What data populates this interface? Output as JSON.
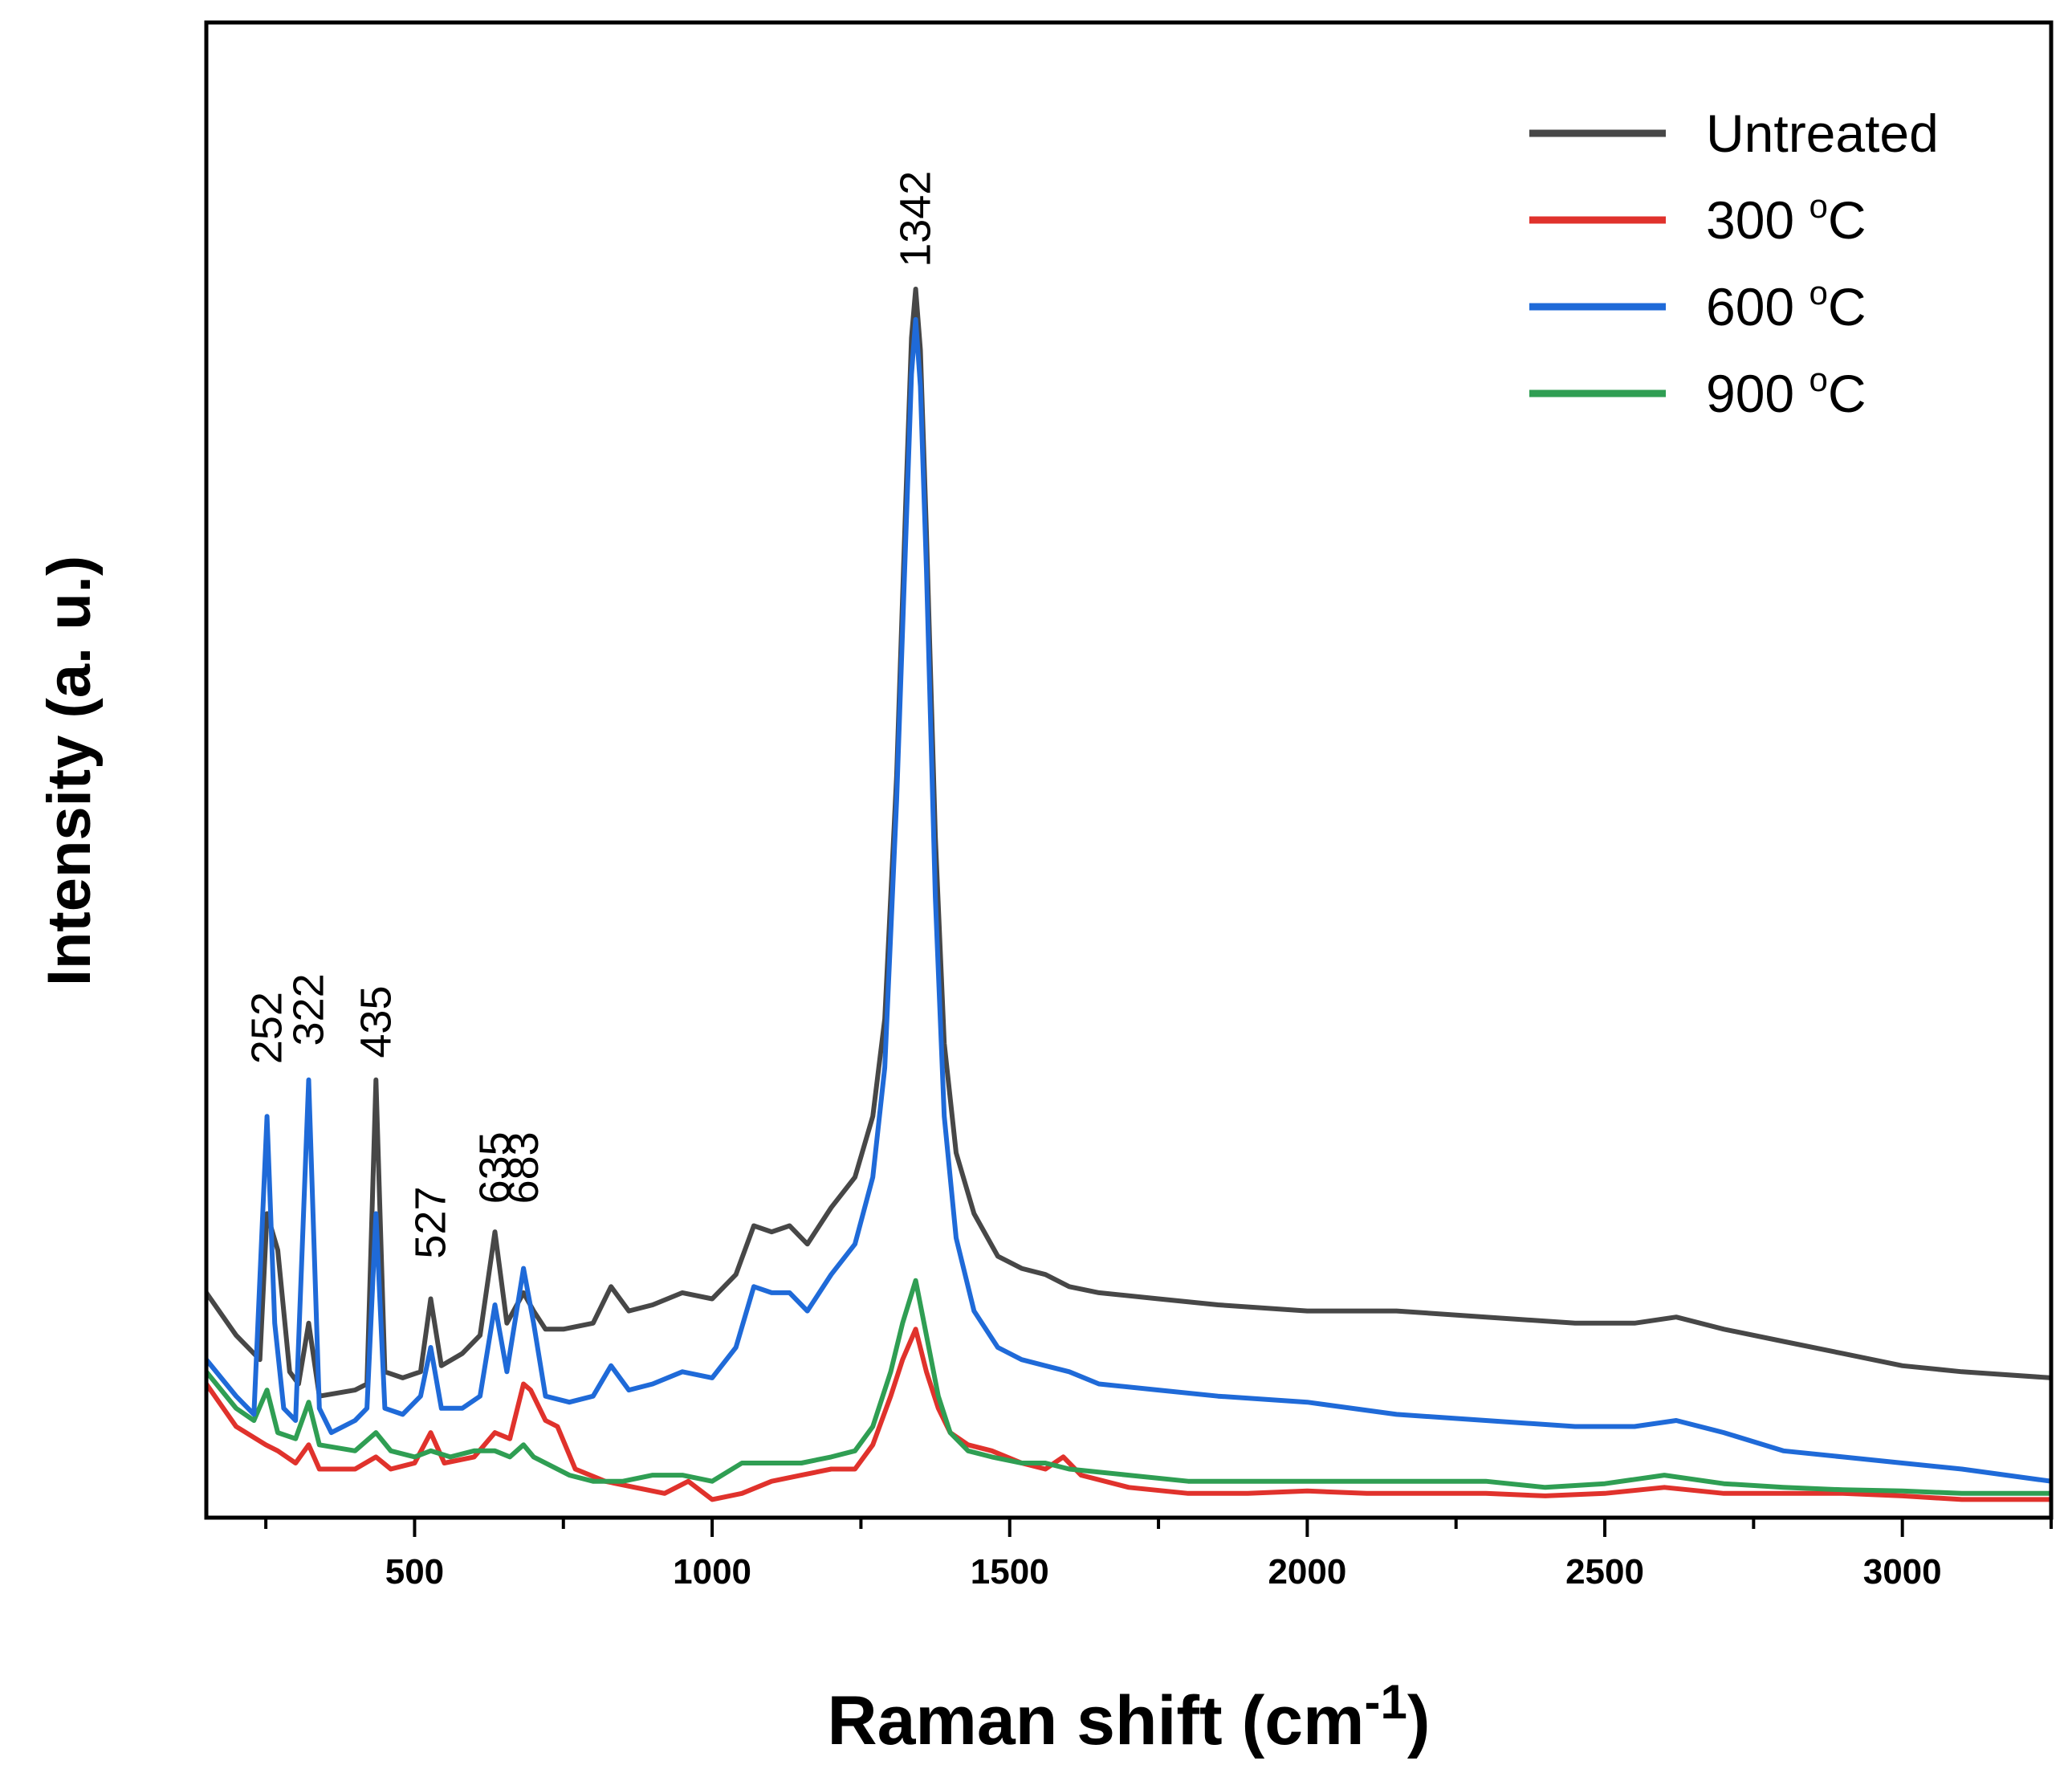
{
  "chart_data": {
    "type": "line",
    "title": "",
    "xlabel": "Raman shift (cm",
    "xlabel_superscript": "-1",
    "xlabel_close": ")",
    "ylabel": "Intensity (a. u.)",
    "xlim": [
      150,
      3250
    ],
    "ylim": [
      0,
      1.0
    ],
    "xticks": [
      500,
      1000,
      1500,
      2000,
      2500,
      3000
    ],
    "xtick_labels": [
      "500",
      "1000",
      "1500",
      "2000",
      "2500",
      "3000"
    ],
    "legend_position": "top-right",
    "peak_annotations": [
      {
        "label": "252",
        "x": 252,
        "y": 0.355
      },
      {
        "label": "322",
        "x": 322,
        "y": 0.37
      },
      {
        "label": "435",
        "x": 435,
        "y": 0.36
      },
      {
        "label": "527",
        "x": 527,
        "y": 0.195
      },
      {
        "label": "635",
        "x": 635,
        "y": 0.24
      },
      {
        "label": "683",
        "x": 683,
        "y": 0.24
      },
      {
        "label": "1342",
        "x": 1342,
        "y": 1.01
      }
    ],
    "series": [
      {
        "name": "Untreated",
        "color": "#474747",
        "points": [
          [
            150,
            0.175
          ],
          [
            200,
            0.14
          ],
          [
            240,
            0.12
          ],
          [
            252,
            0.24
          ],
          [
            270,
            0.21
          ],
          [
            290,
            0.11
          ],
          [
            305,
            0.1
          ],
          [
            322,
            0.15
          ],
          [
            340,
            0.09
          ],
          [
            400,
            0.095
          ],
          [
            420,
            0.1
          ],
          [
            435,
            0.35
          ],
          [
            450,
            0.11
          ],
          [
            480,
            0.105
          ],
          [
            510,
            0.11
          ],
          [
            527,
            0.17
          ],
          [
            545,
            0.115
          ],
          [
            580,
            0.125
          ],
          [
            610,
            0.14
          ],
          [
            635,
            0.225
          ],
          [
            655,
            0.15
          ],
          [
            683,
            0.175
          ],
          [
            700,
            0.16
          ],
          [
            720,
            0.145
          ],
          [
            750,
            0.145
          ],
          [
            800,
            0.15
          ],
          [
            830,
            0.18
          ],
          [
            860,
            0.16
          ],
          [
            900,
            0.165
          ],
          [
            950,
            0.175
          ],
          [
            1000,
            0.17
          ],
          [
            1040,
            0.19
          ],
          [
            1070,
            0.23
          ],
          [
            1100,
            0.225
          ],
          [
            1130,
            0.23
          ],
          [
            1160,
            0.215
          ],
          [
            1200,
            0.245
          ],
          [
            1240,
            0.27
          ],
          [
            1270,
            0.32
          ],
          [
            1290,
            0.4
          ],
          [
            1310,
            0.6
          ],
          [
            1325,
            0.82
          ],
          [
            1335,
            0.96
          ],
          [
            1342,
            1.0
          ],
          [
            1350,
            0.95
          ],
          [
            1360,
            0.8
          ],
          [
            1375,
            0.55
          ],
          [
            1390,
            0.38
          ],
          [
            1410,
            0.29
          ],
          [
            1440,
            0.24
          ],
          [
            1480,
            0.205
          ],
          [
            1520,
            0.195
          ],
          [
            1560,
            0.19
          ],
          [
            1600,
            0.18
          ],
          [
            1650,
            0.175
          ],
          [
            1750,
            0.17
          ],
          [
            1850,
            0.165
          ],
          [
            2000,
            0.16
          ],
          [
            2150,
            0.16
          ],
          [
            2300,
            0.155
          ],
          [
            2450,
            0.15
          ],
          [
            2550,
            0.15
          ],
          [
            2620,
            0.155
          ],
          [
            2700,
            0.145
          ],
          [
            2800,
            0.135
          ],
          [
            2900,
            0.125
          ],
          [
            3000,
            0.115
          ],
          [
            3100,
            0.11
          ],
          [
            3250,
            0.105
          ]
        ]
      },
      {
        "name": "300 °C",
        "color": "#e0322c",
        "points": [
          [
            150,
            0.1
          ],
          [
            200,
            0.065
          ],
          [
            250,
            0.05
          ],
          [
            270,
            0.045
          ],
          [
            300,
            0.035
          ],
          [
            322,
            0.05
          ],
          [
            340,
            0.03
          ],
          [
            400,
            0.03
          ],
          [
            435,
            0.04
          ],
          [
            460,
            0.03
          ],
          [
            500,
            0.035
          ],
          [
            527,
            0.06
          ],
          [
            550,
            0.035
          ],
          [
            600,
            0.04
          ],
          [
            635,
            0.06
          ],
          [
            660,
            0.055
          ],
          [
            683,
            0.1
          ],
          [
            695,
            0.095
          ],
          [
            720,
            0.07
          ],
          [
            740,
            0.065
          ],
          [
            770,
            0.03
          ],
          [
            820,
            0.02
          ],
          [
            870,
            0.015
          ],
          [
            920,
            0.01
          ],
          [
            960,
            0.02
          ],
          [
            1000,
            0.005
          ],
          [
            1050,
            0.01
          ],
          [
            1100,
            0.02
          ],
          [
            1150,
            0.025
          ],
          [
            1200,
            0.03
          ],
          [
            1240,
            0.03
          ],
          [
            1270,
            0.05
          ],
          [
            1300,
            0.09
          ],
          [
            1320,
            0.12
          ],
          [
            1342,
            0.145
          ],
          [
            1360,
            0.11
          ],
          [
            1380,
            0.08
          ],
          [
            1400,
            0.06
          ],
          [
            1430,
            0.05
          ],
          [
            1470,
            0.045
          ],
          [
            1520,
            0.035
          ],
          [
            1560,
            0.03
          ],
          [
            1590,
            0.04
          ],
          [
            1620,
            0.025
          ],
          [
            1700,
            0.015
          ],
          [
            1800,
            0.01
          ],
          [
            1900,
            0.01
          ],
          [
            2000,
            0.012
          ],
          [
            2100,
            0.01
          ],
          [
            2200,
            0.01
          ],
          [
            2300,
            0.01
          ],
          [
            2400,
            0.008
          ],
          [
            2500,
            0.01
          ],
          [
            2600,
            0.015
          ],
          [
            2700,
            0.01
          ],
          [
            2800,
            0.01
          ],
          [
            2900,
            0.01
          ],
          [
            3000,
            0.008
          ],
          [
            3100,
            0.005
          ],
          [
            3250,
            0.005
          ]
        ]
      },
      {
        "name": "600 °C",
        "color": "#1f6ad8",
        "points": [
          [
            150,
            0.12
          ],
          [
            200,
            0.09
          ],
          [
            230,
            0.075
          ],
          [
            252,
            0.32
          ],
          [
            265,
            0.15
          ],
          [
            280,
            0.08
          ],
          [
            300,
            0.07
          ],
          [
            322,
            0.35
          ],
          [
            340,
            0.08
          ],
          [
            360,
            0.06
          ],
          [
            400,
            0.07
          ],
          [
            420,
            0.08
          ],
          [
            435,
            0.24
          ],
          [
            450,
            0.08
          ],
          [
            480,
            0.075
          ],
          [
            510,
            0.09
          ],
          [
            527,
            0.13
          ],
          [
            545,
            0.08
          ],
          [
            580,
            0.08
          ],
          [
            610,
            0.09
          ],
          [
            635,
            0.165
          ],
          [
            655,
            0.11
          ],
          [
            683,
            0.195
          ],
          [
            700,
            0.15
          ],
          [
            720,
            0.09
          ],
          [
            760,
            0.085
          ],
          [
            800,
            0.09
          ],
          [
            830,
            0.115
          ],
          [
            860,
            0.095
          ],
          [
            900,
            0.1
          ],
          [
            950,
            0.11
          ],
          [
            1000,
            0.105
          ],
          [
            1040,
            0.13
          ],
          [
            1070,
            0.18
          ],
          [
            1100,
            0.175
          ],
          [
            1130,
            0.175
          ],
          [
            1160,
            0.16
          ],
          [
            1200,
            0.19
          ],
          [
            1240,
            0.215
          ],
          [
            1270,
            0.27
          ],
          [
            1290,
            0.36
          ],
          [
            1310,
            0.58
          ],
          [
            1325,
            0.79
          ],
          [
            1335,
            0.93
          ],
          [
            1342,
            0.975
          ],
          [
            1350,
            0.92
          ],
          [
            1360,
            0.77
          ],
          [
            1375,
            0.5
          ],
          [
            1390,
            0.32
          ],
          [
            1410,
            0.22
          ],
          [
            1440,
            0.16
          ],
          [
            1480,
            0.13
          ],
          [
            1520,
            0.12
          ],
          [
            1560,
            0.115
          ],
          [
            1600,
            0.11
          ],
          [
            1650,
            0.1
          ],
          [
            1750,
            0.095
          ],
          [
            1850,
            0.09
          ],
          [
            2000,
            0.085
          ],
          [
            2150,
            0.075
          ],
          [
            2300,
            0.07
          ],
          [
            2450,
            0.065
          ],
          [
            2550,
            0.065
          ],
          [
            2620,
            0.07
          ],
          [
            2700,
            0.06
          ],
          [
            2800,
            0.045
          ],
          [
            2900,
            0.04
          ],
          [
            3000,
            0.035
          ],
          [
            3100,
            0.03
          ],
          [
            3250,
            0.02
          ]
        ]
      },
      {
        "name": "900 °C",
        "color": "#2f9e53",
        "points": [
          [
            150,
            0.11
          ],
          [
            200,
            0.08
          ],
          [
            230,
            0.07
          ],
          [
            252,
            0.095
          ],
          [
            270,
            0.06
          ],
          [
            300,
            0.055
          ],
          [
            322,
            0.085
          ],
          [
            340,
            0.05
          ],
          [
            400,
            0.045
          ],
          [
            435,
            0.06
          ],
          [
            460,
            0.045
          ],
          [
            500,
            0.04
          ],
          [
            527,
            0.045
          ],
          [
            560,
            0.04
          ],
          [
            600,
            0.045
          ],
          [
            635,
            0.045
          ],
          [
            660,
            0.04
          ],
          [
            683,
            0.05
          ],
          [
            700,
            0.04
          ],
          [
            760,
            0.025
          ],
          [
            800,
            0.02
          ],
          [
            850,
            0.02
          ],
          [
            900,
            0.025
          ],
          [
            950,
            0.025
          ],
          [
            1000,
            0.02
          ],
          [
            1050,
            0.035
          ],
          [
            1100,
            0.035
          ],
          [
            1150,
            0.035
          ],
          [
            1200,
            0.04
          ],
          [
            1240,
            0.045
          ],
          [
            1270,
            0.065
          ],
          [
            1300,
            0.11
          ],
          [
            1320,
            0.15
          ],
          [
            1342,
            0.185
          ],
          [
            1360,
            0.14
          ],
          [
            1380,
            0.09
          ],
          [
            1400,
            0.06
          ],
          [
            1430,
            0.045
          ],
          [
            1470,
            0.04
          ],
          [
            1520,
            0.035
          ],
          [
            1560,
            0.035
          ],
          [
            1600,
            0.03
          ],
          [
            1700,
            0.025
          ],
          [
            1800,
            0.02
          ],
          [
            1900,
            0.02
          ],
          [
            2000,
            0.02
          ],
          [
            2100,
            0.02
          ],
          [
            2200,
            0.02
          ],
          [
            2300,
            0.02
          ],
          [
            2400,
            0.015
          ],
          [
            2500,
            0.018
          ],
          [
            2600,
            0.025
          ],
          [
            2700,
            0.018
          ],
          [
            2800,
            0.015
          ],
          [
            2900,
            0.013
          ],
          [
            3000,
            0.012
          ],
          [
            3100,
            0.01
          ],
          [
            3250,
            0.01
          ]
        ]
      }
    ]
  }
}
